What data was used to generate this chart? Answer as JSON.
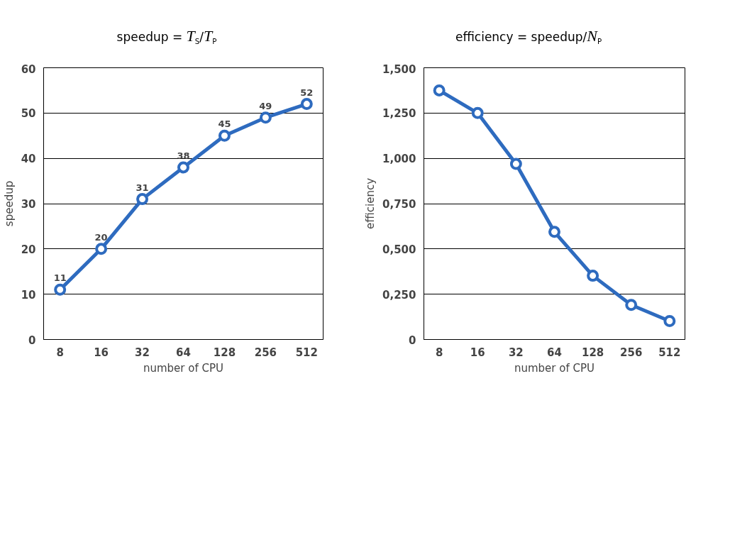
{
  "chart_data": [
    {
      "type": "line",
      "title": "speedup = T$_{S}$/T$_{P}$",
      "xlabel": "number of CPU",
      "ylabel": "speedup",
      "categories": [
        "8",
        "16",
        "32",
        "64",
        "128",
        "256",
        "512"
      ],
      "series": [
        {
          "color": "#2e6bbf",
          "values": [
            11,
            20,
            31,
            38,
            45,
            49,
            52
          ]
        }
      ],
      "ylim": [
        0,
        60
      ],
      "yticks": [
        0,
        10,
        20,
        30,
        40,
        50,
        60
      ],
      "grid": "y",
      "marker": "circle",
      "data_labels": true
    },
    {
      "type": "line",
      "title": "efficiency = speedup/N$_{P}$",
      "xlabel": "number of CPU",
      "ylabel": "efficiency",
      "categories": [
        "8",
        "16",
        "32",
        "64",
        "128",
        "256",
        "512"
      ],
      "series": [
        {
          "color": "#2e6bbf",
          "values": [
            1.375,
            1.25,
            0.969,
            0.594,
            0.352,
            0.191,
            0.102
          ]
        }
      ],
      "ylim": [
        0,
        1.5
      ],
      "yticks": [
        0,
        {
          "value": 0.25,
          "label": "0,250"
        },
        {
          "value": 0.5,
          "label": "0,500"
        },
        {
          "value": 0.75,
          "label": "0,750"
        },
        {
          "value": 1.0,
          "label": "1,000"
        },
        {
          "value": 1.25,
          "label": "1,250"
        },
        {
          "value": 1.5,
          "label": "1,500"
        }
      ],
      "grid": "y",
      "marker": "circle"
    }
  ]
}
